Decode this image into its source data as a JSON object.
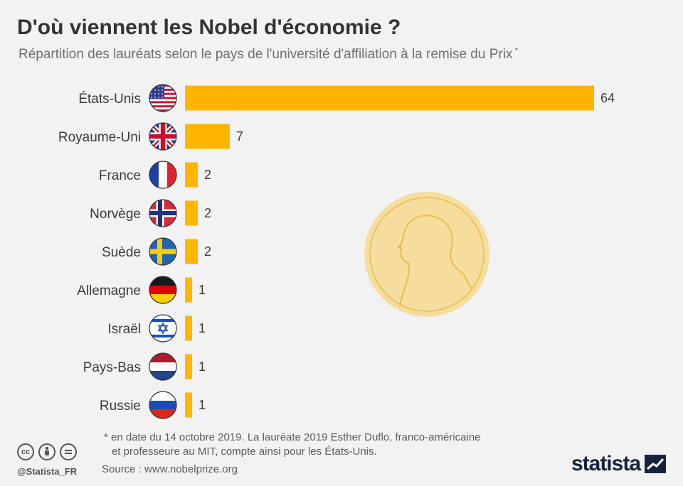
{
  "header": {
    "title": "D'où viennent les Nobel d'économie ?",
    "subtitle": "Répartition des lauréats selon le pays de l'université d'affiliation à la remise du Prix",
    "subtitle_mark": "*"
  },
  "chart_data": {
    "type": "bar",
    "orientation": "horizontal",
    "title": "D'où viennent les Nobel d'économie ?",
    "subtitle": "Répartition des lauréats selon le pays de l'université d'affiliation à la remise du Prix *",
    "categories": [
      "États-Unis",
      "Royaume-Uni",
      "France",
      "Norvège",
      "Suède",
      "Allemagne",
      "Israël",
      "Pays-Bas",
      "Russie"
    ],
    "values": [
      64,
      7,
      2,
      2,
      2,
      1,
      1,
      1,
      1
    ],
    "value_labels": [
      "64",
      "7",
      "2",
      "2",
      "2",
      "1",
      "1",
      "1",
      "1"
    ],
    "flag_icons": [
      "us-flag-icon",
      "uk-flag-icon",
      "france-flag-icon",
      "norway-flag-icon",
      "sweden-flag-icon",
      "germany-flag-icon",
      "israel-flag-icon",
      "netherlands-flag-icon",
      "russia-flag-icon"
    ],
    "xlim": [
      0,
      64
    ],
    "grid": false,
    "legend": "none",
    "bar_color": "#ffb400",
    "decoration": "nobel-medal-icon"
  },
  "footer": {
    "footnote_line1": "* en date du 14 octobre 2019. La lauréate 2019 Esther Duflo, franco-américaine",
    "footnote_line2": "et professeure au MIT, compte ainsi pour les États-Unis.",
    "source": "Source : www.nobelprize.org",
    "handle": "@Statista_FR",
    "brand": "statista",
    "license_icons": [
      "cc-icon",
      "by-icon",
      "nd-icon"
    ]
  },
  "colors": {
    "background": "#f2f2f2",
    "bar": "#ffb400",
    "medal": "#f6d98a",
    "brand": "#15233d"
  }
}
